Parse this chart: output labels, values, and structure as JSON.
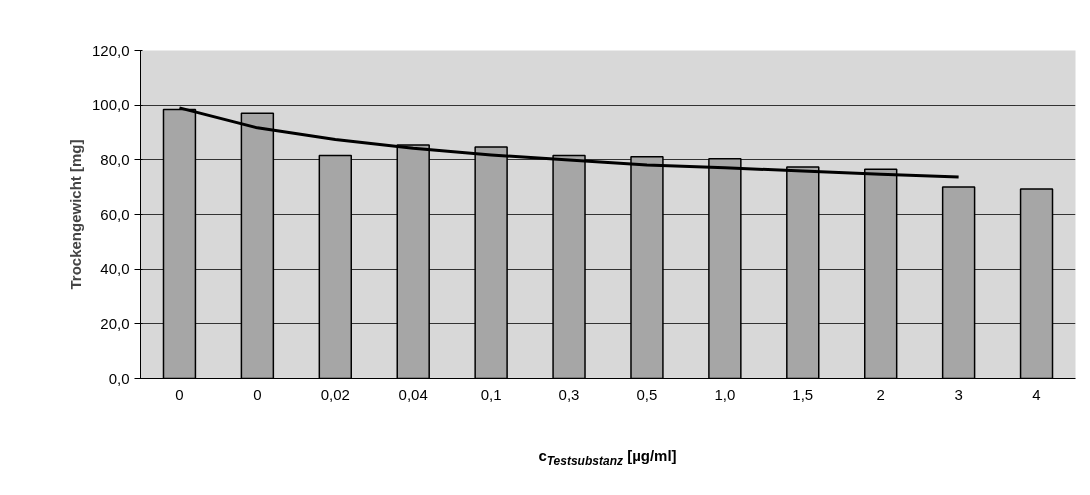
{
  "chart_data": {
    "type": "bar",
    "xlabel": "c$_{Testsubstanz}$ [µg/ml]",
    "ylabel": "Trockengewicht [mg]",
    "categories": [
      "0",
      "0",
      "0,02",
      "0,04",
      "0,1",
      "0,3",
      "0,5",
      "1,0",
      "1,5",
      "2",
      "3",
      "4"
    ],
    "series": [
      {
        "color": "#a6a6a6",
        "values": [
          98.4,
          97.0,
          81.6,
          85.4,
          84.7,
          81.6,
          81.1,
          80.4,
          77.4,
          76.6,
          70.1,
          69.3
        ]
      },
      {
        "type": "line",
        "color": "#000000",
        "values": [
          99.0,
          91.7,
          87.4,
          84.2,
          81.8,
          79.9,
          78.1,
          77.1,
          75.9,
          74.7,
          73.7,
          null
        ]
      }
    ],
    "ylim": [
      0,
      120
    ],
    "yticks": [
      {
        "value": 0,
        "label": "0,0"
      },
      {
        "value": 20,
        "label": "20,0"
      },
      {
        "value": 40,
        "label": "40,0"
      },
      {
        "value": 60,
        "label": "60,0"
      },
      {
        "value": 80,
        "label": "80,0"
      },
      {
        "value": 100,
        "label": "100,0"
      },
      {
        "value": 120,
        "label": "120,0"
      }
    ],
    "grid": "y",
    "line_style": "solid",
    "marker": "none"
  }
}
